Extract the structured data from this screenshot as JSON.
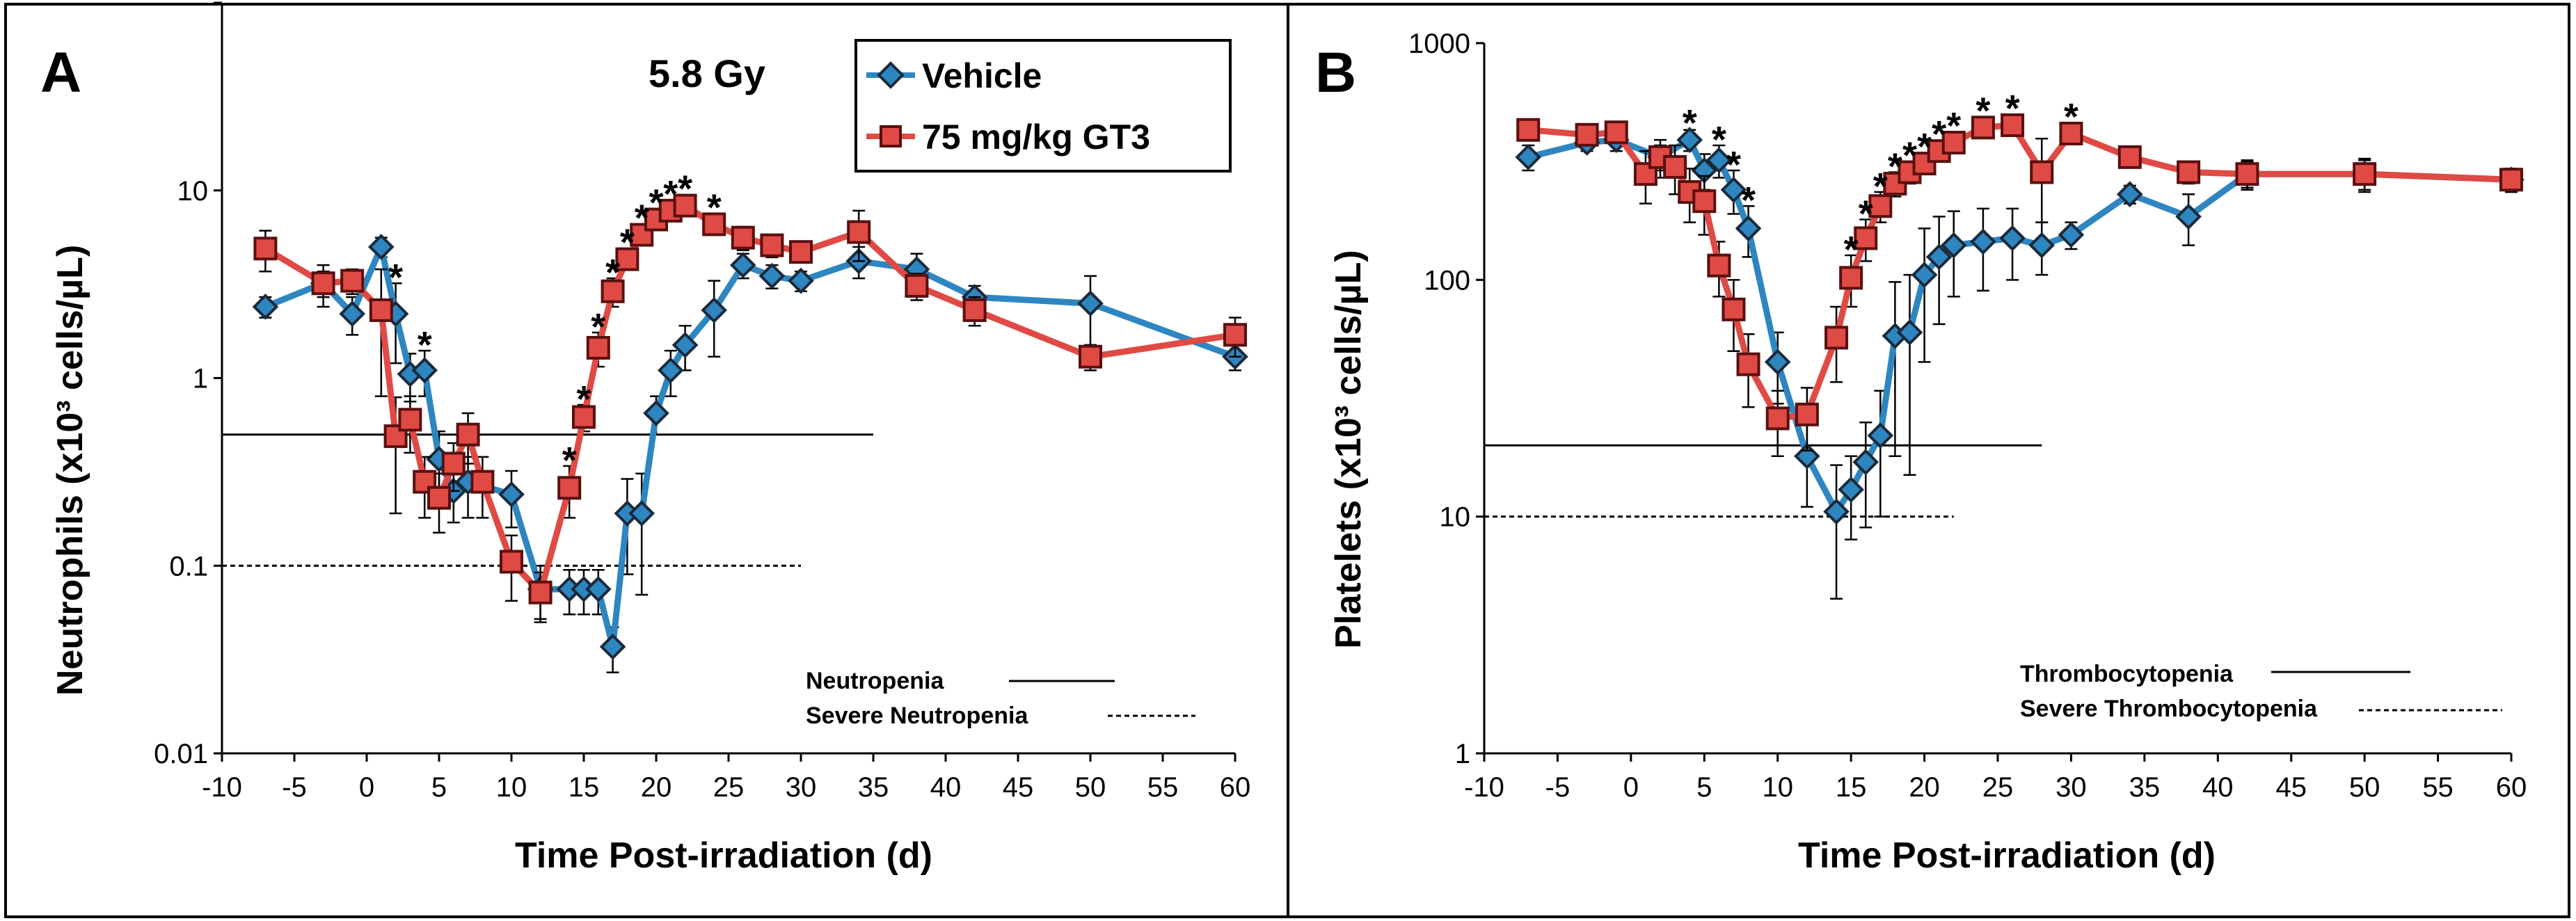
{
  "chart_data": [
    {
      "panel": "A",
      "type": "line",
      "y_scale": "log",
      "ylim": [
        0.01,
        100
      ],
      "xlim": [
        -10,
        60
      ],
      "xlabel": "Time Post-irradiation (d)",
      "ylabel": "Neutrophils (x10³ cells/µL)",
      "dose_label": "5.8 Gy",
      "x_ticks": [
        "-10",
        "-5",
        "0",
        "5",
        "10",
        "15",
        "20",
        "25",
        "30",
        "35",
        "40",
        "45",
        "50",
        "55",
        "60"
      ],
      "y_ticks": [
        {
          "value": 0.01,
          "label": "0.01"
        },
        {
          "value": 0.1,
          "label": "0.1"
        },
        {
          "value": 1,
          "label": "1"
        },
        {
          "value": 10,
          "label": "10"
        }
      ],
      "legend": [
        "Vehicle",
        "75 mg/kg GT3"
      ],
      "legend_position": "top-right",
      "series": [
        {
          "name": "Vehicle",
          "color": "#2e86c1",
          "marker": "diamond",
          "x": [
            -7,
            -3,
            -1,
            1,
            2,
            3,
            4,
            5,
            6,
            7,
            10,
            12,
            14,
            15,
            16,
            17,
            18,
            19,
            20,
            21,
            22,
            24,
            26,
            28,
            30,
            34,
            38,
            42,
            50,
            60
          ],
          "y": [
            2.4,
            3.2,
            2.2,
            5.0,
            2.2,
            1.05,
            1.1,
            0.37,
            0.25,
            0.28,
            0.24,
            0.075,
            0.075,
            0.075,
            0.075,
            0.037,
            0.19,
            0.19,
            0.65,
            1.1,
            1.5,
            2.3,
            4.0,
            3.5,
            3.3,
            4.2,
            3.8,
            2.7,
            2.5,
            1.3
          ],
          "err": [
            0.3,
            0.5,
            0.5,
            0.6,
            1.0,
            0.3,
            0.3,
            0.15,
            0.08,
            0.1,
            0.08,
            0.025,
            0.02,
            0.02,
            0.02,
            0.01,
            0.1,
            0.12,
            0.15,
            0.3,
            0.4,
            1.0,
            0.6,
            0.5,
            0.4,
            0.8,
            0.8,
            0.4,
            1.0,
            0.2
          ]
        },
        {
          "name": "75 mg/kg GT3",
          "color": "#e04a44",
          "marker": "square",
          "x": [
            -7,
            -3,
            -1,
            1,
            2,
            3,
            4,
            5,
            6,
            7,
            8,
            10,
            12,
            14,
            15,
            16,
            17,
            18,
            19,
            20,
            21,
            22,
            24,
            26,
            28,
            30,
            34,
            38,
            42,
            50,
            60
          ],
          "y": [
            4.9,
            3.2,
            3.3,
            2.3,
            0.49,
            0.6,
            0.28,
            0.23,
            0.35,
            0.5,
            0.28,
            0.105,
            0.072,
            0.26,
            0.62,
            1.45,
            2.9,
            4.3,
            5.8,
            7.0,
            7.8,
            8.3,
            6.6,
            5.6,
            5.1,
            4.7,
            6.0,
            3.1,
            2.3,
            1.3,
            1.7
          ],
          "err": [
            1.2,
            0.8,
            0.5,
            1.5,
            0.3,
            0.2,
            0.1,
            0.08,
            0.1,
            0.15,
            0.1,
            0.04,
            0.02,
            0.08,
            0.1,
            0.3,
            0.5,
            0.5,
            0.6,
            0.8,
            0.8,
            0.9,
            0.6,
            0.8,
            0.7,
            0.5,
            1.8,
            0.5,
            0.4,
            0.2,
            0.4
          ]
        }
      ],
      "significance_x": [
        2,
        4,
        14,
        15,
        16,
        17,
        18,
        19,
        20,
        21,
        22,
        24
      ],
      "significance_symbol": "*",
      "reference_lines": [
        {
          "name": "Neutropenia",
          "value": 0.5,
          "style": "solid",
          "x_end": 35
        },
        {
          "name": "Severe Neutropenia",
          "value": 0.1,
          "style": "dashed",
          "x_end": 30
        }
      ],
      "line_key": [
        "Neutropenia",
        "Severe Neutropenia"
      ]
    },
    {
      "panel": "B",
      "type": "line",
      "y_scale": "log",
      "ylim": [
        1,
        1000
      ],
      "xlim": [
        -10,
        60
      ],
      "xlabel": "Time Post-irradiation (d)",
      "ylabel": "Platelets (x10³ cells/µL)",
      "x_ticks": [
        "-10",
        "-5",
        "0",
        "5",
        "10",
        "15",
        "20",
        "25",
        "30",
        "35",
        "40",
        "45",
        "50",
        "55",
        "60"
      ],
      "y_ticks": [
        {
          "value": 1,
          "label": "1"
        },
        {
          "value": 10,
          "label": "10"
        },
        {
          "value": 100,
          "label": "100"
        },
        {
          "value": 1000,
          "label": "1000"
        }
      ],
      "series": [
        {
          "name": "Vehicle",
          "color": "#2e86c1",
          "marker": "diamond",
          "x": [
            -7,
            -3,
            -1,
            2,
            4,
            5,
            6,
            7,
            8,
            10,
            12,
            14,
            15,
            16,
            17,
            18,
            19,
            20,
            21,
            22,
            24,
            26,
            28,
            30,
            34,
            38,
            42,
            50,
            60
          ],
          "y": [
            330,
            380,
            390,
            330,
            390,
            290,
            320,
            240,
            165,
            45,
            18,
            10.5,
            13,
            17,
            22,
            58,
            60,
            105,
            125,
            140,
            145,
            150,
            140,
            155,
            230,
            185,
            280,
            280,
            265
          ],
          "err": [
            40,
            30,
            40,
            40,
            40,
            50,
            50,
            50,
            40,
            15,
            7,
            6,
            5,
            8,
            12,
            40,
            45,
            60,
            60,
            55,
            55,
            50,
            35,
            20,
            20,
            45,
            40,
            40,
            30
          ]
        },
        {
          "name": "75 mg/kg GT3",
          "color": "#e04a44",
          "marker": "square",
          "x": [
            -7,
            -3,
            -1,
            1,
            2,
            3,
            4,
            5,
            6,
            7,
            8,
            10,
            12,
            14,
            15,
            16,
            17,
            18,
            19,
            20,
            21,
            22,
            24,
            26,
            28,
            30,
            34,
            38,
            42,
            50,
            60
          ],
          "y": [
            430,
            410,
            420,
            280,
            330,
            300,
            235,
            215,
            115,
            75,
            44,
            26,
            27,
            57,
            102,
            150,
            205,
            255,
            285,
            310,
            350,
            380,
            440,
            450,
            285,
            415,
            330,
            285,
            280,
            280,
            265
          ],
          "err": [
            40,
            40,
            40,
            70,
            60,
            70,
            60,
            60,
            30,
            25,
            15,
            8,
            8,
            20,
            25,
            30,
            30,
            30,
            30,
            30,
            35,
            35,
            40,
            40,
            110,
            40,
            30,
            30,
            35,
            45,
            30
          ]
        }
      ],
      "significance_x": [
        4,
        6,
        7,
        8,
        15,
        16,
        17,
        18,
        19,
        20,
        21,
        22,
        24,
        26,
        30
      ],
      "significance_symbol": "*",
      "reference_lines": [
        {
          "name": "Thrombocytopenia",
          "value": 20,
          "style": "solid",
          "x_end": 28
        },
        {
          "name": "Severe Thrombocytopenia",
          "value": 10,
          "style": "dashed",
          "x_end": 22
        }
      ],
      "line_key": [
        "Thrombocytopenia",
        "Severe Thrombocytopenia"
      ]
    }
  ]
}
